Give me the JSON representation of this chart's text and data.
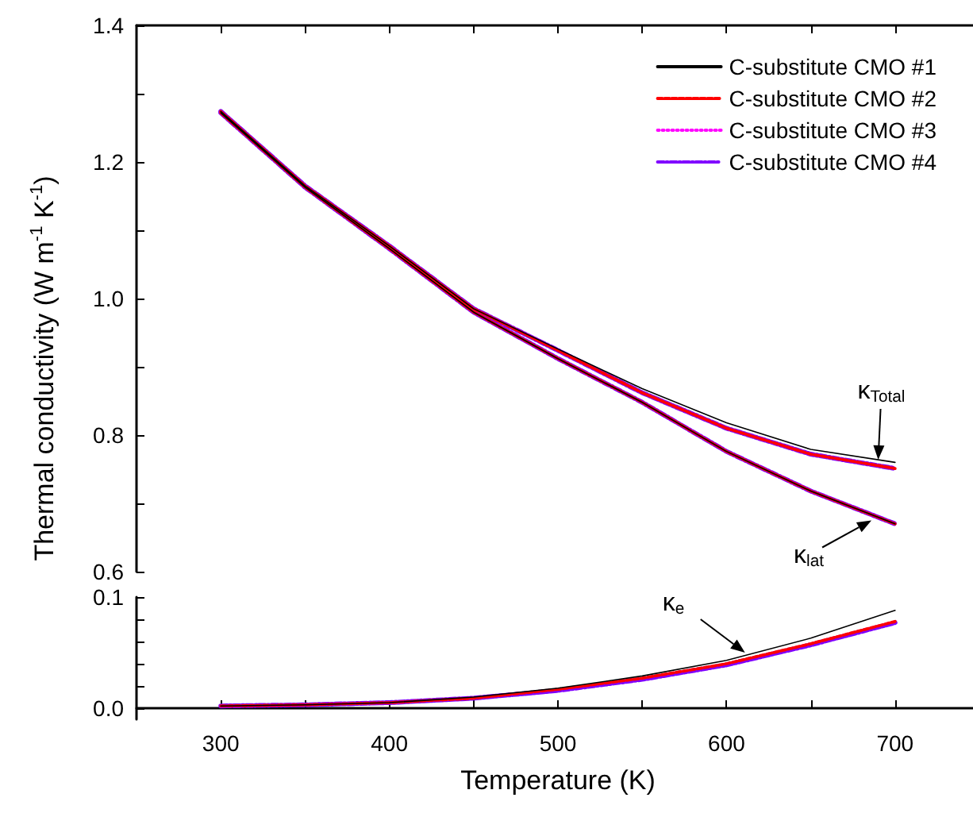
{
  "chart_data": [
    {
      "type": "line",
      "ylabel": "Thermal conductivity (W m$^{-1}$ K$^{-1}$)",
      "x": [
        300,
        350,
        400,
        450,
        500,
        550,
        600,
        650,
        700
      ],
      "series": [
        {
          "name": "C-substitute CMO #1",
          "color": "#000000",
          "line_style": "solid",
          "values": [
            1.274,
            1.165,
            1.077,
            0.985,
            0.926,
            0.868,
            0.818,
            0.779,
            0.76
          ]
        },
        {
          "name": "C-substitute CMO #2",
          "color": "#ff0000",
          "line_style": "dashed",
          "values": [
            1.274,
            1.165,
            1.077,
            0.985,
            0.924,
            0.862,
            0.81,
            0.772,
            0.751
          ]
        },
        {
          "name": "C-substitute CMO #3",
          "color": "#ff00ff",
          "line_style": "dotted",
          "values": [
            null,
            null,
            null,
            null,
            null,
            null,
            null,
            null,
            null
          ]
        },
        {
          "name": "C-substitute CMO #4",
          "color": "#8000ff",
          "line_style": "dashdot",
          "values": [
            1.274,
            1.165,
            1.077,
            0.985,
            0.924,
            0.862,
            0.81,
            0.772,
            0.751
          ]
        },
        {
          "color": "#000000",
          "line_style": "solid",
          "values": [
            1.272,
            1.163,
            1.073,
            0.98,
            0.912,
            0.848,
            0.776,
            0.718,
            0.67
          ]
        },
        {
          "color": "#ff0000",
          "line_style": "dashed",
          "values": [
            1.272,
            1.163,
            1.073,
            0.98,
            0.912,
            0.848,
            0.776,
            0.718,
            0.67
          ]
        },
        {
          "color": "#ff00ff",
          "line_style": "dotted",
          "values": [
            null,
            null,
            null,
            null,
            null,
            null,
            null,
            null,
            null
          ]
        },
        {
          "color": "#8000ff",
          "line_style": "dashdot",
          "values": [
            1.272,
            1.163,
            1.073,
            0.98,
            0.912,
            0.848,
            0.776,
            0.718,
            0.67
          ]
        }
      ],
      "xlim": [
        250,
        750
      ],
      "xticks": [
        {
          "value": 300,
          "label": null
        },
        {
          "value": 350,
          "label": null
        },
        {
          "value": 400,
          "label": null
        },
        {
          "value": 450,
          "label": null
        },
        {
          "value": 500,
          "label": null
        },
        {
          "value": 550,
          "label": null
        },
        {
          "value": 600,
          "label": null
        },
        {
          "value": 650,
          "label": null
        },
        {
          "value": 700,
          "label": null
        }
      ],
      "ylim": [
        0.6,
        1.4
      ],
      "yticks": [
        0.6,
        {
          "value": 0.7,
          "label": null
        },
        0.8,
        {
          "value": 0.9,
          "label": null
        },
        {
          "value": 1,
          "label": "1.0"
        },
        {
          "value": 1.1,
          "label": null
        },
        1.2,
        {
          "value": 1.3,
          "label": null
        },
        1.4
      ],
      "tick_labels": "y",
      "legend": "top right",
      "grid": false,
      "annotations": [
        {
          "text": "κ$_{Total}$",
          "x": 690,
          "y": 0.764
        },
        {
          "text": "κ$_{lat}$",
          "x": 686,
          "y": 0.675
        }
      ]
    },
    {
      "type": "line",
      "xlabel": "Temperature (K)",
      "x": [
        300,
        350,
        400,
        450,
        500,
        550,
        600,
        650,
        700
      ],
      "series": [
        {
          "color": "#000000",
          "line_style": "solid",
          "values": [
            0.002,
            0.003,
            0.005,
            0.01,
            0.018,
            0.029,
            0.043,
            0.063,
            0.088
          ]
        },
        {
          "color": "#ff0000",
          "line_style": "dashed",
          "values": [
            0.002,
            0.003,
            0.005,
            0.009,
            0.017,
            0.027,
            0.04,
            0.058,
            0.078
          ]
        },
        {
          "color": "#ff00ff",
          "line_style": "dotted",
          "values": [
            null,
            null,
            null,
            null,
            null,
            null,
            null,
            null,
            null
          ]
        },
        {
          "color": "#8000ff",
          "line_style": "dashdot",
          "values": [
            0.002,
            0.003,
            0.005,
            0.009,
            0.016,
            0.026,
            0.039,
            0.057,
            0.077
          ]
        }
      ],
      "xlim": [
        250,
        750
      ],
      "xticks": [
        300,
        {
          "value": 350,
          "label": null
        },
        400,
        {
          "value": 450,
          "label": null
        },
        500,
        {
          "value": 550,
          "label": null
        },
        600,
        {
          "value": 650,
          "label": null
        },
        700
      ],
      "ylim": [
        -0.01,
        0.1
      ],
      "yticks": [
        {
          "value": 0,
          "label": "0.0"
        },
        {
          "value": 0.02,
          "label": null
        },
        {
          "value": 0.04,
          "label": null
        },
        {
          "value": 0.06,
          "label": null
        },
        {
          "value": 0.08,
          "label": null
        },
        0.1
      ],
      "grid": false,
      "annotations": [
        {
          "text": "κ$_{e}$",
          "x": 611,
          "y": 0.05
        }
      ]
    }
  ]
}
